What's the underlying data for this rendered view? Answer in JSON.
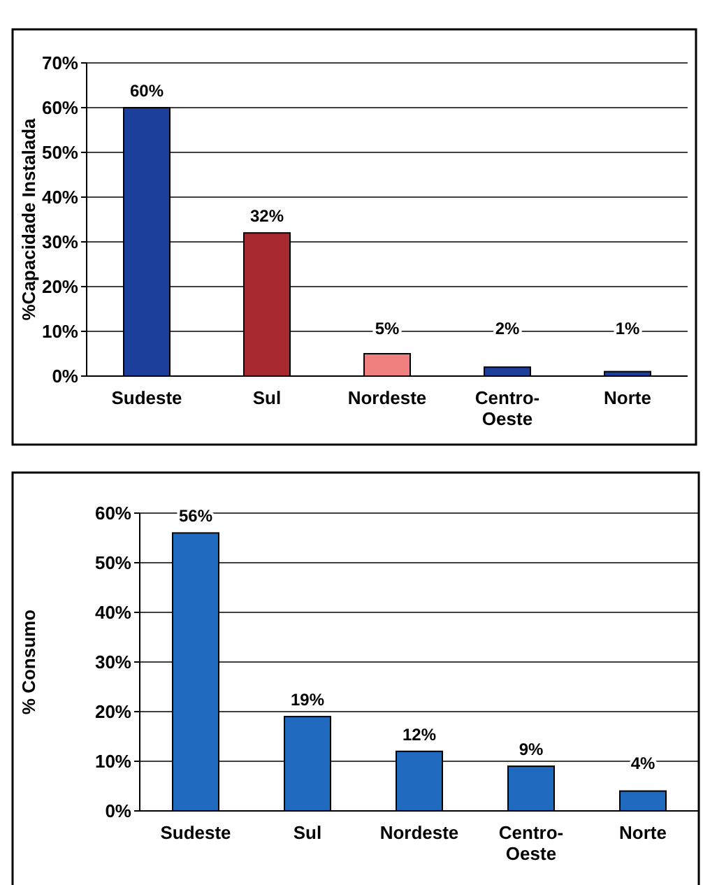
{
  "chart_data": [
    {
      "type": "bar",
      "ylabel": "%Capacidade Instalada",
      "categories": [
        "Sudeste",
        "Sul",
        "Nordeste",
        "Centro-Oeste",
        "Norte"
      ],
      "values": [
        60,
        32,
        5,
        2,
        1
      ],
      "colors": [
        "#1c3f9c",
        "#a82a30",
        "#f08080",
        "#1c3f9c",
        "#1c3f9c"
      ],
      "value_labels": [
        "60%",
        "32%",
        "5%",
        "2%",
        "1%"
      ],
      "ylim": [
        0,
        70
      ],
      "yticks": [
        {
          "value": 0,
          "label": "0%"
        },
        {
          "value": 10,
          "label": "10%"
        },
        {
          "value": 20,
          "label": "20%"
        },
        {
          "value": 30,
          "label": "30%"
        },
        {
          "value": 40,
          "label": "40%"
        },
        {
          "value": 50,
          "label": "50%"
        },
        {
          "value": 60,
          "label": "60%"
        },
        {
          "value": 70,
          "label": "70%"
        }
      ],
      "grid": "y"
    },
    {
      "type": "bar",
      "ylabel": "% Consumo",
      "categories": [
        "Sudeste",
        "Sul",
        "Nordeste",
        "Centro-Oeste",
        "Norte"
      ],
      "values": [
        56,
        19,
        12,
        9,
        4
      ],
      "color": "#1f6abf",
      "value_labels": [
        "56%",
        "19%",
        "12%",
        "9%",
        "4%"
      ],
      "ylim": [
        0,
        60
      ],
      "yticks": [
        {
          "value": 0,
          "label": "0%"
        },
        {
          "value": 10,
          "label": "10%"
        },
        {
          "value": 20,
          "label": "20%"
        },
        {
          "value": 30,
          "label": "30%"
        },
        {
          "value": 40,
          "label": "40%"
        },
        {
          "value": 50,
          "label": "50%"
        },
        {
          "value": 60,
          "label": "60%"
        }
      ],
      "grid": "y"
    }
  ]
}
